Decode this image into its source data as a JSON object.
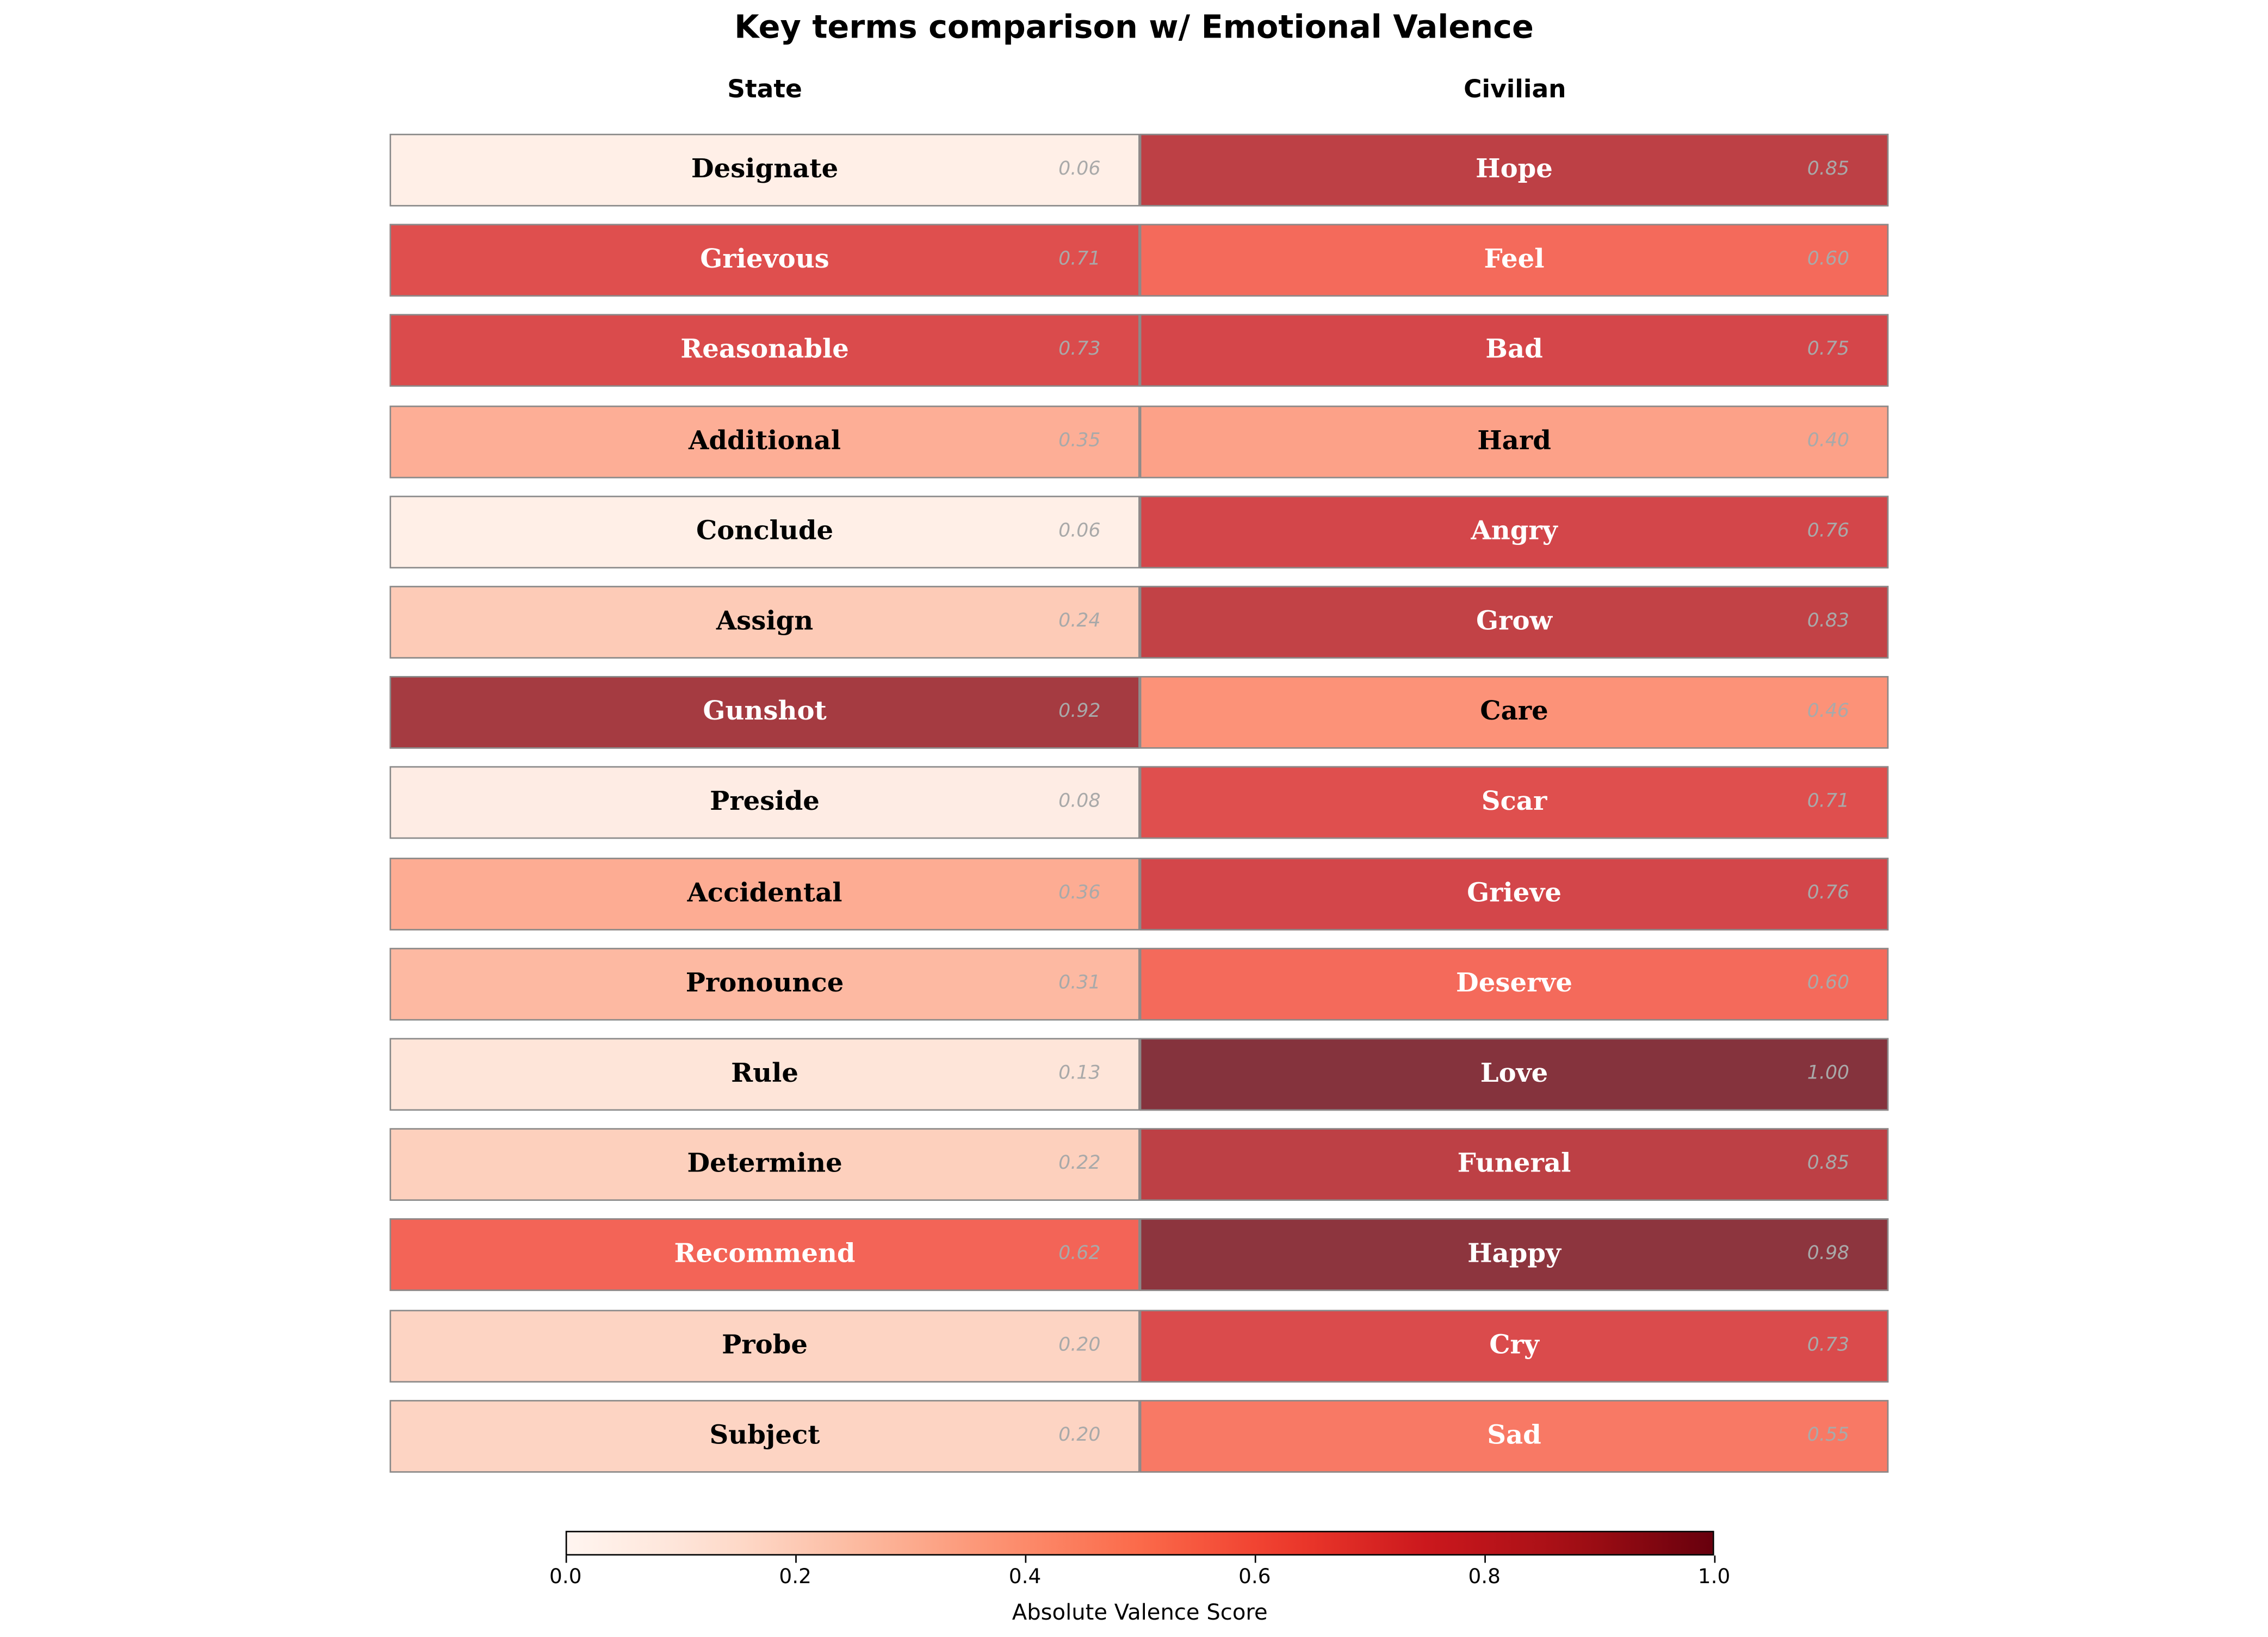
{
  "chart_data": {
    "type": "heatmap",
    "title": "Key terms comparison w/ Emotional Valence",
    "columns": [
      "State",
      "Civilian"
    ],
    "colormap": "Reds",
    "series": [
      {
        "name": "State",
        "terms": [
          "Designate",
          "Grievous",
          "Reasonable",
          "Additional",
          "Conclude",
          "Assign",
          "Gunshot",
          "Preside",
          "Accidental",
          "Pronounce",
          "Rule",
          "Determine",
          "Recommend",
          "Probe",
          "Subject"
        ],
        "values": [
          0.06,
          0.71,
          0.73,
          0.35,
          0.06,
          0.24,
          0.92,
          0.08,
          0.36,
          0.31,
          0.13,
          0.22,
          0.62,
          0.2,
          0.2
        ]
      },
      {
        "name": "Civilian",
        "terms": [
          "Hope",
          "Feel",
          "Bad",
          "Hard",
          "Angry",
          "Grow",
          "Care",
          "Scar",
          "Grieve",
          "Deserve",
          "Love",
          "Funeral",
          "Happy",
          "Cry",
          "Sad"
        ],
        "values": [
          0.85,
          0.6,
          0.75,
          0.4,
          0.76,
          0.83,
          0.46,
          0.71,
          0.76,
          0.6,
          1.0,
          0.85,
          0.98,
          0.73,
          0.55
        ]
      }
    ],
    "colorbar": {
      "label": "Absolute Valence Score",
      "range": [
        0,
        1
      ],
      "ticks": [
        "0.0",
        "0.2",
        "0.4",
        "0.6",
        "0.8",
        "1.0"
      ]
    }
  }
}
